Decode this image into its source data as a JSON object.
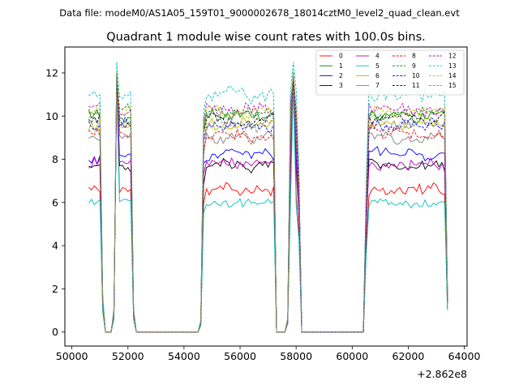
{
  "chart_data": {
    "type": "line",
    "suptitle": "Data file: modeM0/AS1A05_159T01_9000002678_18014cztM0_level2_quad_clean.evt",
    "title": "Quadrant 1 module wise count rates with 100.0s bins.",
    "xlabel": "",
    "ylabel": "",
    "x_offset_label": "+2.862e8",
    "xlim": [
      49750,
      64100
    ],
    "ylim": [
      -0.65,
      13.2
    ],
    "x_ticks": [
      50000,
      52000,
      54000,
      56000,
      58000,
      60000,
      62000,
      64000
    ],
    "x_tick_labels": [
      "50000",
      "52000",
      "54000",
      "56000",
      "58000",
      "60000",
      "62000",
      "64000"
    ],
    "y_ticks": [
      0,
      2,
      4,
      6,
      8,
      10,
      12
    ],
    "y_tick_labels": [
      "0",
      "2",
      "4",
      "6",
      "8",
      "10",
      "12"
    ],
    "legend_position": "upper right",
    "legend_columns": 4,
    "x": [
      50600,
      50700,
      50800,
      50900,
      51000,
      51100,
      51200,
      51300,
      51400,
      51500,
      51600,
      51700,
      51800,
      51900,
      52000,
      52100,
      52200,
      52300,
      52400,
      52500,
      52600,
      52700,
      52800,
      52900,
      53000,
      53100,
      53200,
      53300,
      53400,
      53500,
      53600,
      53700,
      53800,
      53900,
      54000,
      54100,
      54200,
      54300,
      54400,
      54500,
      54600,
      54700,
      54800,
      54900,
      55000,
      55100,
      55200,
      55300,
      55400,
      55500,
      55600,
      55700,
      55800,
      55900,
      56000,
      56100,
      56200,
      56300,
      56400,
      56500,
      56600,
      56700,
      56800,
      56900,
      57000,
      57100,
      57200,
      57300,
      57400,
      57500,
      57600,
      57700,
      57800,
      57900,
      58000,
      58100,
      58200,
      58300,
      58400,
      58500,
      58600,
      58700,
      58800,
      58900,
      59000,
      59100,
      59200,
      59300,
      59400,
      59500,
      59600,
      59700,
      59800,
      59900,
      60000,
      60100,
      60200,
      60300,
      60400,
      60500,
      60600,
      60700,
      60800,
      60900,
      61000,
      61100,
      61200,
      61300,
      61400,
      61500,
      61600,
      61700,
      61800,
      61900,
      62000,
      62100,
      62200,
      62300,
      62400,
      62500,
      62600,
      62700,
      62800,
      62900,
      63000,
      63100,
      63200,
      63300,
      63400
    ],
    "envelope": [
      1.0,
      1.0,
      1.0,
      1.0,
      1.0,
      0.15,
      0.0,
      0.0,
      0.0,
      0.1,
      1.0,
      1.0,
      1.0,
      1.0,
      1.0,
      1.0,
      0.1,
      0.0,
      0.0,
      0.0,
      0.0,
      0.0,
      0.0,
      0.0,
      0.0,
      0.0,
      0.0,
      0.0,
      0.0,
      0.0,
      0.0,
      0.0,
      0.0,
      0.0,
      0.0,
      0.0,
      0.0,
      0.0,
      0.0,
      0.0,
      0.05,
      0.93,
      1.0,
      1.0,
      1.0,
      1.0,
      1.0,
      1.0,
      1.0,
      1.0,
      1.0,
      1.0,
      1.0,
      1.0,
      1.0,
      1.0,
      1.0,
      1.0,
      1.0,
      1.0,
      1.0,
      1.0,
      1.0,
      1.0,
      1.0,
      1.0,
      1.0,
      0.0,
      0.0,
      0.0,
      0.0,
      0.06,
      1.0,
      1.0,
      1.0,
      0.7,
      0.0,
      0.0,
      0.0,
      0.0,
      0.0,
      0.0,
      0.0,
      0.0,
      0.0,
      0.0,
      0.0,
      0.0,
      0.0,
      0.0,
      0.0,
      0.0,
      0.0,
      0.0,
      0.0,
      0.0,
      0.0,
      0.0,
      0.0,
      0.62,
      1.0,
      1.0,
      1.0,
      1.0,
      1.0,
      1.0,
      1.0,
      1.0,
      1.0,
      1.0,
      1.0,
      1.0,
      1.0,
      1.0,
      1.0,
      1.0,
      1.0,
      1.0,
      1.0,
      1.0,
      1.0,
      1.0,
      1.0,
      1.0,
      1.0,
      1.0,
      1.0,
      1.0,
      0.17
    ],
    "spike_positions": [
      51600,
      57900
    ],
    "series": [
      {
        "name": "0",
        "color": "#ff0000",
        "dashed": false,
        "mean": 6.6,
        "spike": 11.8,
        "noise": 0.3
      },
      {
        "name": "1",
        "color": "#008000",
        "dashed": false,
        "mean": 10.0,
        "spike": 12.0,
        "noise": 0.3
      },
      {
        "name": "2",
        "color": "#0000ff",
        "dashed": false,
        "mean": 8.2,
        "spike": 11.6,
        "noise": 0.35
      },
      {
        "name": "3",
        "color": "#000000",
        "dashed": false,
        "mean": 7.7,
        "spike": 11.4,
        "noise": 0.3
      },
      {
        "name": "4",
        "color": "#bf00bf",
        "dashed": false,
        "mean": 7.8,
        "spike": 11.6,
        "noise": 0.3
      },
      {
        "name": "5",
        "color": "#00bfbf",
        "dashed": false,
        "mean": 6.0,
        "spike": 11.3,
        "noise": 0.25
      },
      {
        "name": "6",
        "color": "#bfbf00",
        "dashed": false,
        "mean": 9.6,
        "spike": 11.9,
        "noise": 0.35
      },
      {
        "name": "7",
        "color": "#808080",
        "dashed": false,
        "mean": 9.0,
        "spike": 11.6,
        "noise": 0.3
      },
      {
        "name": "8",
        "color": "#ff0000",
        "dashed": true,
        "mean": 9.2,
        "spike": 11.7,
        "noise": 0.35
      },
      {
        "name": "9",
        "color": "#008000",
        "dashed": true,
        "mean": 10.2,
        "spike": 11.8,
        "noise": 0.35
      },
      {
        "name": "10",
        "color": "#0000ff",
        "dashed": true,
        "mean": 9.6,
        "spike": 11.8,
        "noise": 0.35
      },
      {
        "name": "11",
        "color": "#000000",
        "dashed": true,
        "mean": 9.9,
        "spike": 11.7,
        "noise": 0.35
      },
      {
        "name": "12",
        "color": "#bf00bf",
        "dashed": true,
        "mean": 10.3,
        "spike": 11.9,
        "noise": 0.35
      },
      {
        "name": "13",
        "color": "#00bfbf",
        "dashed": true,
        "mean": 11.0,
        "spike": 12.5,
        "noise": 0.4
      },
      {
        "name": "14",
        "color": "#bfbf00",
        "dashed": true,
        "mean": 10.2,
        "spike": 12.1,
        "noise": 0.35
      },
      {
        "name": "15",
        "color": "#808080",
        "dashed": true,
        "mean": 9.6,
        "spike": 11.9,
        "noise": 0.35
      }
    ]
  }
}
